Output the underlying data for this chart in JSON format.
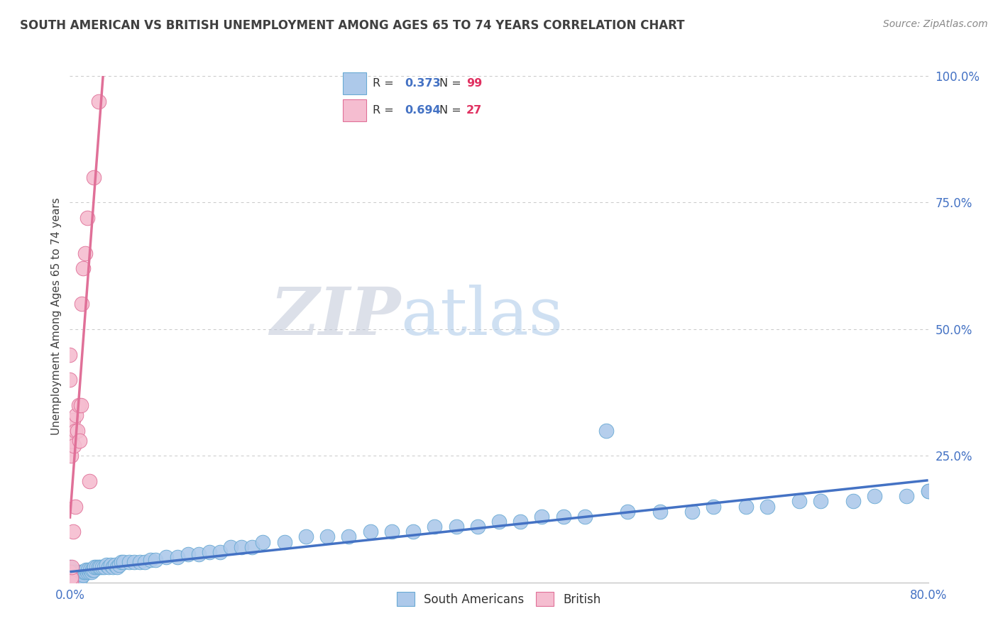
{
  "title": "SOUTH AMERICAN VS BRITISH UNEMPLOYMENT AMONG AGES 65 TO 74 YEARS CORRELATION CHART",
  "source": "Source: ZipAtlas.com",
  "ylabel": "Unemployment Among Ages 65 to 74 years",
  "xmin": 0.0,
  "xmax": 0.8,
  "ymin": 0.0,
  "ymax": 1.05,
  "yticks": [
    0.0,
    0.25,
    0.5,
    0.75,
    1.0
  ],
  "ytick_labels": [
    "",
    "25.0%",
    "50.0%",
    "75.0%",
    "100.0%"
  ],
  "watermark_zip": "ZIP",
  "watermark_atlas": "atlas",
  "sa_color": "#adc9ea",
  "sa_edge_color": "#6aaad4",
  "sa_trend_color": "#4472c4",
  "br_color": "#f5bdd0",
  "br_edge_color": "#e07098",
  "br_trend_color": "#e07098",
  "background_color": "#ffffff",
  "grid_color": "#c8c8c8",
  "title_color": "#404040",
  "source_color": "#888888",
  "axis_label_color": "#404040",
  "tick_color": "#4472c4",
  "legend_r_color": "#4472c4",
  "legend_n_color": "#e03060",
  "sa_x": [
    0.0,
    0.0,
    0.0,
    0.0,
    0.0,
    0.0,
    0.0,
    0.0,
    0.001,
    0.001,
    0.001,
    0.002,
    0.002,
    0.003,
    0.003,
    0.004,
    0.004,
    0.005,
    0.005,
    0.006,
    0.006,
    0.007,
    0.008,
    0.008,
    0.009,
    0.01,
    0.01,
    0.011,
    0.012,
    0.013,
    0.014,
    0.015,
    0.016,
    0.017,
    0.018,
    0.019,
    0.02,
    0.021,
    0.022,
    0.023,
    0.025,
    0.027,
    0.028,
    0.03,
    0.032,
    0.034,
    0.036,
    0.038,
    0.04,
    0.042,
    0.044,
    0.046,
    0.048,
    0.05,
    0.055,
    0.06,
    0.065,
    0.07,
    0.075,
    0.08,
    0.09,
    0.1,
    0.11,
    0.12,
    0.13,
    0.14,
    0.15,
    0.16,
    0.17,
    0.18,
    0.2,
    0.22,
    0.24,
    0.26,
    0.28,
    0.3,
    0.32,
    0.34,
    0.36,
    0.38,
    0.4,
    0.42,
    0.44,
    0.46,
    0.48,
    0.5,
    0.52,
    0.55,
    0.58,
    0.6,
    0.63,
    0.65,
    0.68,
    0.7,
    0.73,
    0.75,
    0.78,
    0.8,
    0.8
  ],
  "sa_y": [
    0.0,
    0.0,
    0.0,
    0.01,
    0.01,
    0.02,
    0.02,
    0.03,
    0.0,
    0.01,
    0.02,
    0.0,
    0.01,
    0.0,
    0.02,
    0.01,
    0.015,
    0.0,
    0.02,
    0.01,
    0.02,
    0.01,
    0.015,
    0.02,
    0.015,
    0.01,
    0.02,
    0.02,
    0.015,
    0.02,
    0.02,
    0.025,
    0.02,
    0.025,
    0.02,
    0.025,
    0.02,
    0.025,
    0.025,
    0.03,
    0.03,
    0.03,
    0.03,
    0.03,
    0.03,
    0.035,
    0.03,
    0.035,
    0.03,
    0.035,
    0.03,
    0.035,
    0.04,
    0.04,
    0.04,
    0.04,
    0.04,
    0.04,
    0.045,
    0.045,
    0.05,
    0.05,
    0.055,
    0.055,
    0.06,
    0.06,
    0.07,
    0.07,
    0.07,
    0.08,
    0.08,
    0.09,
    0.09,
    0.09,
    0.1,
    0.1,
    0.1,
    0.11,
    0.11,
    0.11,
    0.12,
    0.12,
    0.13,
    0.13,
    0.13,
    0.3,
    0.14,
    0.14,
    0.14,
    0.15,
    0.15,
    0.15,
    0.16,
    0.16,
    0.16,
    0.17,
    0.17,
    0.18,
    0.18
  ],
  "br_x": [
    0.0,
    0.0,
    0.0,
    0.0,
    0.0,
    0.001,
    0.001,
    0.001,
    0.002,
    0.002,
    0.003,
    0.003,
    0.004,
    0.005,
    0.005,
    0.006,
    0.007,
    0.008,
    0.009,
    0.01,
    0.011,
    0.012,
    0.014,
    0.016,
    0.018,
    0.022,
    0.027
  ],
  "br_y": [
    0.0,
    0.01,
    0.02,
    0.4,
    0.45,
    0.0,
    0.01,
    0.25,
    0.03,
    0.28,
    0.1,
    0.32,
    0.27,
    0.15,
    0.3,
    0.33,
    0.3,
    0.35,
    0.28,
    0.35,
    0.55,
    0.62,
    0.65,
    0.72,
    0.2,
    0.8,
    0.95
  ]
}
